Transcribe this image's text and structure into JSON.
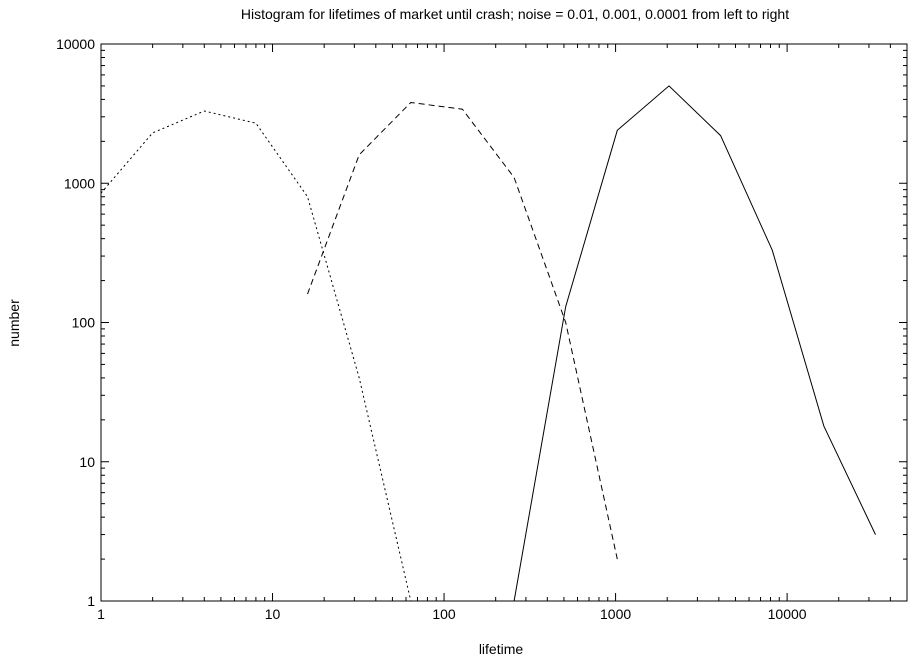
{
  "chart_data": {
    "type": "line",
    "title": "Histogram for lifetimes of market until crash; noise = 0.01, 0.001, 0.0001 from left to right",
    "xlabel": "lifetime",
    "ylabel": "number",
    "xscale": "log",
    "yscale": "log",
    "xlim": [
      1,
      50000
    ],
    "ylim": [
      1,
      10000
    ],
    "x_ticks": [
      "1",
      "10",
      "100",
      "1000",
      "10000"
    ],
    "y_ticks": [
      "1",
      "10",
      "100",
      "1000",
      "10000"
    ],
    "grid": false,
    "legend": "none",
    "series": [
      {
        "style": "dotted",
        "color": "#000000",
        "points": [
          [
            1,
            850
          ],
          [
            2,
            2300
          ],
          [
            4,
            3300
          ],
          [
            8,
            2700
          ],
          [
            16,
            800
          ],
          [
            32,
            40
          ],
          [
            64,
            1
          ]
        ]
      },
      {
        "style": "dashed",
        "color": "#000000",
        "points": [
          [
            16,
            160
          ],
          [
            32,
            1600
          ],
          [
            64,
            3800
          ],
          [
            128,
            3400
          ],
          [
            256,
            1100
          ],
          [
            512,
            100
          ],
          [
            1024,
            2
          ]
        ]
      },
      {
        "style": "solid",
        "color": "#000000",
        "points": [
          [
            256,
            1
          ],
          [
            512,
            130
          ],
          [
            1024,
            2400
          ],
          [
            2048,
            5000
          ],
          [
            4096,
            2200
          ],
          [
            8192,
            330
          ],
          [
            16384,
            18
          ],
          [
            32768,
            3
          ]
        ]
      }
    ]
  }
}
